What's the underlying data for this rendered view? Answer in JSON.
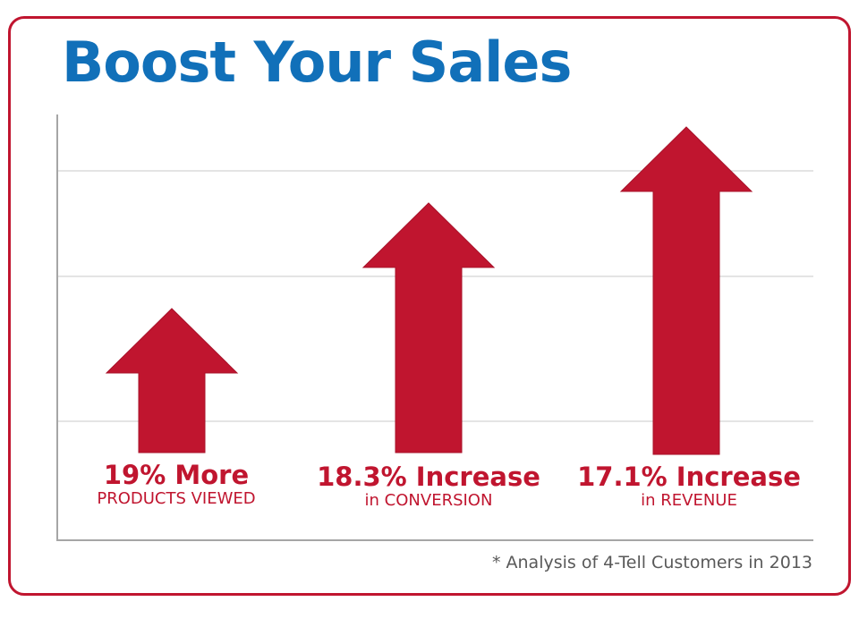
{
  "title": "Boost Your Sales",
  "footnote": "* Analysis of 4-Tell Customers in 2013",
  "colors": {
    "title": "#1170b9",
    "arrow": "#c0152f",
    "frame": "#c0152f",
    "grid": "#c8c8c8",
    "axis": "#a6a6a6",
    "footnote": "#595959"
  },
  "chart_data": {
    "type": "bar",
    "title": "Boost Your Sales",
    "xlabel": "",
    "ylabel": "",
    "grid": true,
    "categories": [
      "19% More",
      "18.3% Increase",
      "17.1% Increase"
    ],
    "sublabels": [
      "PRODUCTS VIEWED",
      "in CONVERSION",
      "in REVENUE"
    ],
    "values": [
      19,
      18.3,
      17.1
    ]
  }
}
